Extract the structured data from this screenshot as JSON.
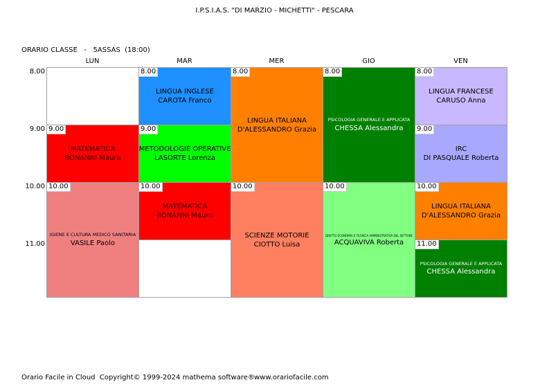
{
  "header": {
    "title": "I.P.S.I.A.S. \"DI MARZIO - MICHETTI\" - PESCARA",
    "subtitle": "ORARIO CLASSE   -   5ASSAS  (18:00)"
  },
  "days": [
    "LUN",
    "MAR",
    "MER",
    "GIO",
    "VEN"
  ],
  "times": [
    "8.00",
    "9.00",
    "10.00",
    "11.00"
  ],
  "cells": [
    {
      "day": 0,
      "start": "9.00",
      "hours": 1,
      "subject": "MATEMATICA",
      "teacher": "BONANNI Maura",
      "color": "#ff0000",
      "text_color": "#400000"
    },
    {
      "day": 0,
      "start": "10.00",
      "hours": 2,
      "subject": "IGIENE E CULTURA MEDICO SANITARIA",
      "teacher": "VASILE Paolo",
      "color": "#f08080",
      "text_color": "#000000",
      "small": true
    },
    {
      "day": 1,
      "start": "8.00",
      "hours": 1,
      "subject": "LINGUA INGLESE",
      "teacher": "CAROTA Franco",
      "color": "#1e90ff",
      "text_color": "#000000"
    },
    {
      "day": 1,
      "start": "9.00",
      "hours": 1,
      "subject": "METODOLOGIE OPERATIVE",
      "teacher": "LASORTE Lorenza",
      "color": "#00ff00",
      "text_color": "#000000"
    },
    {
      "day": 1,
      "start": "10.00",
      "hours": 1,
      "subject": "MATEMATICA",
      "teacher": "BONANNI Maura",
      "color": "#ff0000",
      "text_color": "#400000"
    },
    {
      "day": 2,
      "start": "8.00",
      "hours": 2,
      "subject": "LINGUA ITALIANA",
      "teacher": "D'ALESSANDRO Grazia",
      "color": "#ff8000",
      "text_color": "#000000"
    },
    {
      "day": 2,
      "start": "10.00",
      "hours": 2,
      "subject": "SCIENZE MOTORIE",
      "teacher": "CIOTTO Luisa",
      "color": "#ff8060",
      "text_color": "#000000"
    },
    {
      "day": 3,
      "start": "8.00",
      "hours": 2,
      "subject": "PSICOLOGIA GENERALE E APPLICATA",
      "teacher": "CHESSA Alessandra",
      "color": "#008000",
      "text_color": "#ffffff",
      "small": true
    },
    {
      "day": 3,
      "start": "10.00",
      "hours": 2,
      "subject": "DIRITTO ECONOMIA E TECNICA AMMINISTRATIVA DEL SETTORE",
      "teacher": "ACQUAVIVA Roberta",
      "color": "#80ff80",
      "text_color": "#000000",
      "tiny": true
    },
    {
      "day": 4,
      "start": "8.00",
      "hours": 1,
      "subject": "LINGUA FRANCESE",
      "teacher": "CARUSO Anna",
      "color": "#c8b8ff",
      "text_color": "#000000"
    },
    {
      "day": 4,
      "start": "9.00",
      "hours": 1,
      "subject": "IRC",
      "teacher": "DI PASQUALE Roberta",
      "color": "#a8a8ff",
      "text_color": "#000000"
    },
    {
      "day": 4,
      "start": "10.00",
      "hours": 1,
      "subject": "LINGUA ITALIANA",
      "teacher": "D'ALESSANDRO Grazia",
      "color": "#ff8000",
      "text_color": "#000000"
    },
    {
      "day": 4,
      "start": "11.00",
      "hours": 1,
      "subject": "PSICOLOGIA GENERALE E APPLICATA",
      "teacher": "CHESSA Alessandra",
      "color": "#008000",
      "text_color": "#ffffff",
      "small": true
    }
  ],
  "footer": {
    "copyright": "Orario Facile in Cloud  Copyright© 1999-2024 mathema software®",
    "url": "www.orariofacile.com"
  }
}
